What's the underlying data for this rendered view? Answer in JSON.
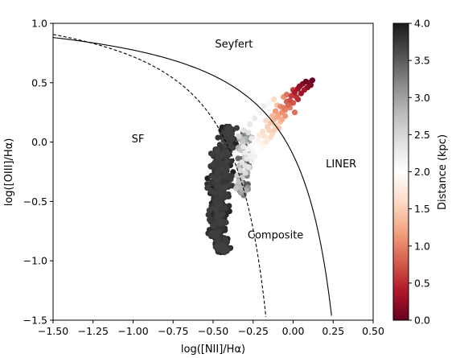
{
  "chart_data": {
    "type": "scatter",
    "title": "",
    "xlabel": "log([NII]/Hα)",
    "ylabel": "log([OIII]/Hα)",
    "xlim": [
      -1.5,
      0.5
    ],
    "ylim": [
      -1.5,
      1.0
    ],
    "x_ticks": [
      -1.5,
      -1.25,
      -1.0,
      -0.75,
      -0.5,
      -0.25,
      0.0,
      0.25,
      0.5
    ],
    "x_tick_labels": [
      "−1.50",
      "−1.25",
      "−1.00",
      "−0.75",
      "−0.50",
      "−0.25",
      "0.00",
      "0.25",
      "0.50"
    ],
    "y_ticks": [
      -1.5,
      -1.0,
      -0.5,
      0.0,
      0.5,
      1.0
    ],
    "y_tick_labels": [
      "−1.5",
      "−1.0",
      "−0.5",
      "0.0",
      "0.5",
      "1.0"
    ],
    "colorbar": {
      "label": "Distance (kpc)",
      "colormap": "RdGy",
      "range": [
        0.0,
        4.0
      ],
      "ticks": [
        0.0,
        0.5,
        1.0,
        1.5,
        2.0,
        2.5,
        3.0,
        3.5,
        4.0
      ],
      "tick_labels": [
        "0.0",
        "0.5",
        "1.0",
        "1.5",
        "2.0",
        "2.5",
        "3.0",
        "3.5",
        "4.0"
      ]
    },
    "curves": [
      {
        "style": "dashed",
        "description_note": "Kauffmann"
      },
      {
        "style": "solid",
        "description_note": "Kewley"
      }
    ],
    "annotations": [
      {
        "text": "Seyfert",
        "x": -0.37,
        "y": 0.83
      },
      {
        "text": "SF",
        "x": -0.97,
        "y": 0.03
      },
      {
        "text": "LINER",
        "x": 0.3,
        "y": -0.18
      },
      {
        "text": "Composite",
        "x": -0.11,
        "y": -0.78
      }
    ],
    "points": [
      [
        0.08,
        0.51,
        0.05
      ],
      [
        0.1,
        0.5,
        0.1
      ],
      [
        0.12,
        0.52,
        0.02
      ],
      [
        0.06,
        0.49,
        0.15
      ],
      [
        0.04,
        0.47,
        0.25
      ],
      [
        0.09,
        0.46,
        0.2
      ],
      [
        0.03,
        0.45,
        0.3
      ],
      [
        0.07,
        0.44,
        0.35
      ],
      [
        0.01,
        0.42,
        0.4
      ],
      [
        0.05,
        0.41,
        0.3
      ],
      [
        0.11,
        0.48,
        0.1
      ],
      [
        0.02,
        0.38,
        0.55
      ],
      [
        -0.01,
        0.39,
        0.6
      ],
      [
        0.03,
        0.36,
        0.5
      ],
      [
        -0.02,
        0.35,
        0.7
      ],
      [
        0.0,
        0.33,
        0.75
      ],
      [
        -0.04,
        0.34,
        0.8
      ],
      [
        -0.03,
        0.31,
        0.85
      ],
      [
        -0.06,
        0.29,
        0.95
      ],
      [
        -0.05,
        0.27,
        1.0
      ],
      [
        -0.08,
        0.3,
        1.05
      ],
      [
        -0.07,
        0.25,
        1.1
      ],
      [
        -0.09,
        0.23,
        1.2
      ],
      [
        -0.11,
        0.26,
        1.15
      ],
      [
        -0.1,
        0.21,
        1.25
      ],
      [
        -0.12,
        0.19,
        1.3
      ],
      [
        -0.13,
        0.22,
        1.35
      ],
      [
        -0.08,
        0.17,
        1.4
      ],
      [
        -0.14,
        0.16,
        1.45
      ],
      [
        -0.11,
        0.14,
        1.5
      ],
      [
        -0.16,
        0.13,
        1.5
      ],
      [
        -0.15,
        0.1,
        1.55
      ],
      [
        -0.17,
        0.18,
        1.6
      ],
      [
        -0.13,
        0.07,
        1.6
      ],
      [
        -0.19,
        0.09,
        1.65
      ],
      [
        -0.18,
        0.05,
        1.7
      ],
      [
        -0.21,
        0.06,
        1.75
      ],
      [
        -0.16,
        0.02,
        1.8
      ],
      [
        -0.22,
        0.02,
        1.85
      ],
      [
        -0.2,
        -0.01,
        1.9
      ],
      [
        -0.24,
        0.0,
        1.95
      ],
      [
        -0.23,
        -0.05,
        2.0
      ],
      [
        -0.26,
        -0.03,
        2.05
      ],
      [
        -0.25,
        -0.08,
        2.1
      ],
      [
        -0.28,
        -0.06,
        2.15
      ],
      [
        -0.27,
        -0.11,
        2.2
      ],
      [
        -0.3,
        -0.09,
        2.25
      ],
      [
        -0.29,
        -0.14,
        2.3
      ],
      [
        -0.31,
        -0.04,
        2.3
      ],
      [
        -0.32,
        -0.17,
        2.35
      ],
      [
        -0.3,
        -0.2,
        2.4
      ],
      [
        -0.33,
        -0.24,
        2.45
      ],
      [
        -0.31,
        0.1,
        2.4
      ],
      [
        -0.27,
        0.15,
        2.3
      ],
      [
        -0.24,
        0.2,
        2.25
      ],
      [
        -0.2,
        0.25,
        2.2
      ],
      [
        -0.18,
        0.3,
        2.2
      ],
      [
        -0.22,
        0.28,
        2.1
      ],
      [
        -0.15,
        0.33,
        1.9
      ],
      [
        -0.12,
        0.36,
        1.6
      ],
      [
        -0.28,
        0.08,
        2.4
      ],
      [
        -0.34,
        0.05,
        2.5
      ],
      [
        -0.26,
        0.03,
        2.3
      ],
      [
        -0.35,
        -0.28,
        2.6
      ],
      [
        -0.34,
        -0.33,
        2.7
      ],
      [
        -0.1,
        0.31,
        1.4
      ],
      [
        -0.06,
        0.38,
        1.1
      ],
      [
        -0.04,
        0.4,
        0.9
      ],
      [
        0.0,
        0.44,
        0.6
      ],
      [
        -0.02,
        0.29,
        1.0
      ],
      [
        0.01,
        0.25,
        0.9
      ],
      [
        -0.05,
        0.22,
        1.1
      ],
      [
        -0.07,
        0.19,
        1.25
      ],
      [
        -0.09,
        0.12,
        1.45
      ],
      [
        -0.12,
        0.1,
        1.5
      ],
      [
        -0.14,
        0.04,
        1.65
      ],
      [
        -0.17,
        0.0,
        1.75
      ],
      [
        -0.19,
        -0.04,
        1.9
      ],
      [
        -0.21,
        -0.07,
        2.0
      ],
      [
        -0.24,
        -0.12,
        2.15
      ],
      [
        -0.26,
        -0.16,
        2.25
      ],
      [
        -0.28,
        -0.21,
        2.35
      ],
      [
        -0.3,
        -0.26,
        2.45
      ],
      [
        -0.32,
        -0.3,
        2.6
      ]
    ],
    "dark_cluster_note": "dense core of points at distance ~4 kpc around x≈-0.45, y≈-0.5"
  }
}
